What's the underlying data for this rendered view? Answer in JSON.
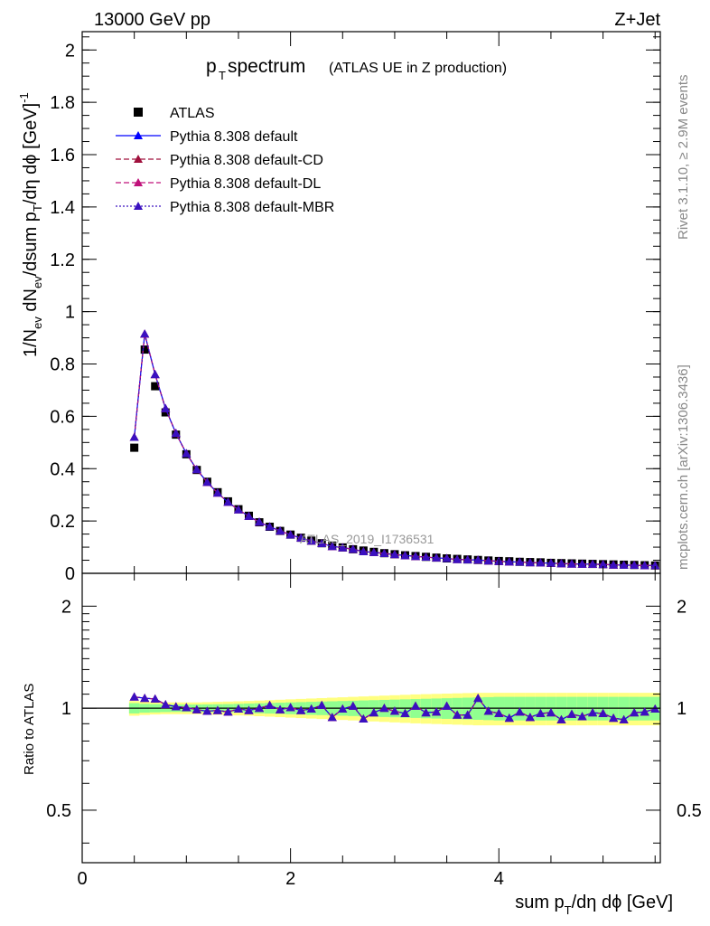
{
  "header": {
    "energy": "13000 GeV pp",
    "process": "Z+Jet",
    "rivet": "Rivet 3.1.10, ≥ 2.9M events",
    "mcplots": "mcplots.cern.ch [arXiv:1306.3436]",
    "watermark": "ATLAS_2019_I1736531"
  },
  "plot_title": {
    "main": "p",
    "sub": "T",
    "rest": " spectrum",
    "small": "(ATLAS UE in Z production)"
  },
  "colors": {
    "atlas": "#000000",
    "default": "#0000ff",
    "cd": "#a0103c",
    "dl": "#c0107a",
    "mbr": "#3a10c0",
    "band_yellow": "#ffff80",
    "band_green": "#90ff90"
  },
  "chart_data": [
    {
      "type": "scatter",
      "panel": "main",
      "ylabel": "1/N_ev dN_ev/dsum p_T/dη dϕ [GeV]^-1",
      "xlim": [
        0,
        5.55
      ],
      "ylim": [
        0,
        2.07
      ],
      "yticks": [
        "0",
        "0.2",
        "0.4",
        "0.6",
        "0.8",
        "1",
        "1.2",
        "1.4",
        "1.6",
        "1.8",
        "2"
      ],
      "legend_position": "top-left",
      "x": [
        0.5,
        0.6,
        0.7,
        0.8,
        0.9,
        1.0,
        1.1,
        1.2,
        1.3,
        1.4,
        1.5,
        1.6,
        1.7,
        1.8,
        1.9,
        2.0,
        2.1,
        2.2,
        2.3,
        2.4,
        2.5,
        2.6,
        2.7,
        2.8,
        2.9,
        3.0,
        3.1,
        3.2,
        3.3,
        3.4,
        3.5,
        3.6,
        3.7,
        3.8,
        3.9,
        4.0,
        4.1,
        4.2,
        4.3,
        4.4,
        4.5,
        4.6,
        4.7,
        4.8,
        4.9,
        5.0,
        5.1,
        5.2,
        5.3,
        5.4,
        5.5
      ],
      "series": [
        {
          "name": "ATLAS",
          "values": [
            0.48,
            0.855,
            0.715,
            0.615,
            0.53,
            0.455,
            0.395,
            0.35,
            0.31,
            0.275,
            0.245,
            0.22,
            0.195,
            0.178,
            0.162,
            0.148,
            0.136,
            0.125,
            0.115,
            0.106,
            0.099,
            0.092,
            0.087,
            0.082,
            0.077,
            0.073,
            0.069,
            0.066,
            0.063,
            0.06,
            0.057,
            0.055,
            0.053,
            0.051,
            0.049,
            0.047,
            0.046,
            0.044,
            0.043,
            0.042,
            0.04,
            0.039,
            0.038,
            0.037,
            0.036,
            0.035,
            0.034,
            0.033,
            0.032,
            0.031,
            0.03
          ]
        },
        {
          "name": "Pythia 8.308 default",
          "values": [
            0.52,
            0.915,
            0.76,
            0.63,
            0.535,
            0.458,
            0.397,
            0.348,
            0.307,
            0.272,
            0.243,
            0.218,
            0.196,
            0.178,
            0.162,
            0.147,
            0.135,
            0.124,
            0.114,
            0.103,
            0.098,
            0.092,
            0.083,
            0.08,
            0.076,
            0.072,
            0.068,
            0.065,
            0.062,
            0.059,
            0.057,
            0.053,
            0.052,
            0.051,
            0.048,
            0.046,
            0.044,
            0.043,
            0.041,
            0.04,
            0.039,
            0.037,
            0.036,
            0.035,
            0.035,
            0.034,
            0.032,
            0.031,
            0.031,
            0.03,
            0.03
          ]
        },
        {
          "name": "Pythia 8.308 default-CD",
          "values": [
            0.52,
            0.915,
            0.76,
            0.63,
            0.535,
            0.458,
            0.397,
            0.348,
            0.307,
            0.272,
            0.243,
            0.218,
            0.196,
            0.178,
            0.162,
            0.147,
            0.135,
            0.124,
            0.114,
            0.103,
            0.098,
            0.092,
            0.083,
            0.08,
            0.076,
            0.072,
            0.068,
            0.065,
            0.062,
            0.059,
            0.057,
            0.053,
            0.052,
            0.051,
            0.048,
            0.046,
            0.044,
            0.043,
            0.041,
            0.04,
            0.039,
            0.037,
            0.036,
            0.035,
            0.035,
            0.034,
            0.032,
            0.031,
            0.031,
            0.03,
            0.03
          ]
        },
        {
          "name": "Pythia 8.308 default-DL",
          "values": [
            0.52,
            0.915,
            0.76,
            0.63,
            0.535,
            0.458,
            0.397,
            0.348,
            0.307,
            0.272,
            0.243,
            0.218,
            0.196,
            0.178,
            0.162,
            0.147,
            0.135,
            0.124,
            0.114,
            0.103,
            0.098,
            0.092,
            0.083,
            0.08,
            0.076,
            0.072,
            0.068,
            0.065,
            0.062,
            0.059,
            0.057,
            0.053,
            0.052,
            0.051,
            0.048,
            0.046,
            0.044,
            0.043,
            0.041,
            0.04,
            0.039,
            0.037,
            0.036,
            0.035,
            0.035,
            0.034,
            0.032,
            0.031,
            0.031,
            0.03,
            0.03
          ]
        },
        {
          "name": "Pythia 8.308 default-MBR",
          "values": [
            0.52,
            0.915,
            0.76,
            0.63,
            0.535,
            0.458,
            0.397,
            0.348,
            0.307,
            0.272,
            0.243,
            0.218,
            0.196,
            0.178,
            0.162,
            0.147,
            0.135,
            0.124,
            0.114,
            0.103,
            0.098,
            0.092,
            0.083,
            0.08,
            0.076,
            0.072,
            0.068,
            0.065,
            0.062,
            0.059,
            0.057,
            0.053,
            0.052,
            0.051,
            0.048,
            0.046,
            0.044,
            0.043,
            0.041,
            0.04,
            0.039,
            0.037,
            0.036,
            0.035,
            0.035,
            0.034,
            0.032,
            0.031,
            0.031,
            0.03,
            0.03
          ]
        }
      ]
    },
    {
      "type": "line",
      "panel": "ratio",
      "ylabel": "Ratio to ATLAS",
      "xlabel": "sum p_T/dη dϕ [GeV]",
      "xlim": [
        0,
        5.55
      ],
      "ylim": [
        0.35,
        2.5
      ],
      "log_y": true,
      "xticks": [
        "0",
        "2",
        "4"
      ],
      "yticks": [
        "0.5",
        "1",
        "2"
      ],
      "x": [
        0.5,
        0.6,
        0.7,
        0.8,
        0.9,
        1.0,
        1.1,
        1.2,
        1.3,
        1.4,
        1.5,
        1.6,
        1.7,
        1.8,
        1.9,
        2.0,
        2.1,
        2.2,
        2.3,
        2.4,
        2.5,
        2.6,
        2.7,
        2.8,
        2.9,
        3.0,
        3.1,
        3.2,
        3.3,
        3.4,
        3.5,
        3.6,
        3.7,
        3.8,
        3.9,
        4.0,
        4.1,
        4.2,
        4.3,
        4.4,
        4.5,
        4.6,
        4.7,
        4.8,
        4.9,
        5.0,
        5.1,
        5.2,
        5.3,
        5.4,
        5.5
      ],
      "band_green": [
        0.035,
        0.03,
        0.028,
        0.026,
        0.025,
        0.025,
        0.025,
        0.026,
        0.027,
        0.028,
        0.03,
        0.032,
        0.034,
        0.036,
        0.038,
        0.04,
        0.042,
        0.044,
        0.046,
        0.048,
        0.05,
        0.052,
        0.054,
        0.056,
        0.058,
        0.06,
        0.062,
        0.064,
        0.066,
        0.068,
        0.07,
        0.072,
        0.074,
        0.076,
        0.078,
        0.08,
        0.08,
        0.08,
        0.08,
        0.08,
        0.08,
        0.08,
        0.08,
        0.08,
        0.08,
        0.08,
        0.08,
        0.08,
        0.08,
        0.08,
        0.08
      ],
      "band_yellow": [
        0.05,
        0.045,
        0.042,
        0.04,
        0.04,
        0.04,
        0.04,
        0.042,
        0.044,
        0.046,
        0.048,
        0.05,
        0.053,
        0.056,
        0.059,
        0.062,
        0.065,
        0.068,
        0.071,
        0.074,
        0.077,
        0.08,
        0.083,
        0.086,
        0.089,
        0.092,
        0.095,
        0.098,
        0.1,
        0.102,
        0.104,
        0.106,
        0.108,
        0.11,
        0.11,
        0.11,
        0.11,
        0.11,
        0.11,
        0.11,
        0.11,
        0.11,
        0.11,
        0.11,
        0.11,
        0.11,
        0.11,
        0.11,
        0.11,
        0.11,
        0.11
      ],
      "series": [
        {
          "name": "Pythia 8.308 default",
          "values": [
            1.08,
            1.07,
            1.065,
            1.025,
            1.01,
            1.005,
            0.99,
            0.98,
            0.985,
            0.975,
            0.995,
            0.985,
            1.0,
            1.02,
            0.99,
            1.005,
            0.985,
            0.995,
            1.02,
            0.94,
            0.995,
            1.015,
            0.93,
            0.97,
            1.0,
            0.98,
            0.965,
            1.015,
            0.97,
            0.975,
            1.015,
            0.955,
            0.955,
            1.07,
            0.98,
            0.965,
            0.935,
            0.975,
            0.94,
            0.965,
            0.97,
            0.925,
            0.96,
            0.945,
            0.97,
            0.965,
            0.935,
            0.925,
            0.97,
            0.975,
            0.995
          ]
        },
        {
          "name": "Pythia 8.308 default-CD",
          "values": [
            1.08,
            1.07,
            1.065,
            1.025,
            1.01,
            1.005,
            0.99,
            0.98,
            0.985,
            0.975,
            0.995,
            0.985,
            1.0,
            1.02,
            0.99,
            1.005,
            0.985,
            0.995,
            1.02,
            0.94,
            0.995,
            1.015,
            0.93,
            0.97,
            1.0,
            0.98,
            0.965,
            1.015,
            0.97,
            0.975,
            1.015,
            0.955,
            0.955,
            1.07,
            0.98,
            0.965,
            0.935,
            0.975,
            0.94,
            0.965,
            0.97,
            0.925,
            0.96,
            0.945,
            0.97,
            0.965,
            0.935,
            0.925,
            0.97,
            0.975,
            0.995
          ]
        },
        {
          "name": "Pythia 8.308 default-DL",
          "values": [
            1.08,
            1.07,
            1.065,
            1.025,
            1.01,
            1.005,
            0.99,
            0.98,
            0.985,
            0.975,
            0.995,
            0.985,
            1.0,
            1.02,
            0.99,
            1.005,
            0.985,
            0.995,
            1.02,
            0.94,
            0.995,
            1.015,
            0.93,
            0.97,
            1.0,
            0.98,
            0.965,
            1.015,
            0.97,
            0.975,
            1.015,
            0.955,
            0.955,
            1.07,
            0.98,
            0.965,
            0.935,
            0.975,
            0.94,
            0.965,
            0.97,
            0.925,
            0.96,
            0.945,
            0.97,
            0.965,
            0.935,
            0.925,
            0.97,
            0.975,
            0.995
          ]
        },
        {
          "name": "Pythia 8.308 default-MBR",
          "values": [
            1.08,
            1.07,
            1.065,
            1.025,
            1.01,
            1.005,
            0.99,
            0.98,
            0.985,
            0.975,
            0.995,
            0.985,
            1.0,
            1.02,
            0.99,
            1.005,
            0.985,
            0.995,
            1.02,
            0.94,
            0.995,
            1.015,
            0.93,
            0.97,
            1.0,
            0.98,
            0.965,
            1.015,
            0.97,
            0.975,
            1.015,
            0.955,
            0.955,
            1.07,
            0.98,
            0.965,
            0.935,
            0.975,
            0.94,
            0.965,
            0.97,
            0.925,
            0.96,
            0.945,
            0.97,
            0.965,
            0.935,
            0.925,
            0.97,
            0.975,
            0.995
          ]
        }
      ]
    }
  ]
}
